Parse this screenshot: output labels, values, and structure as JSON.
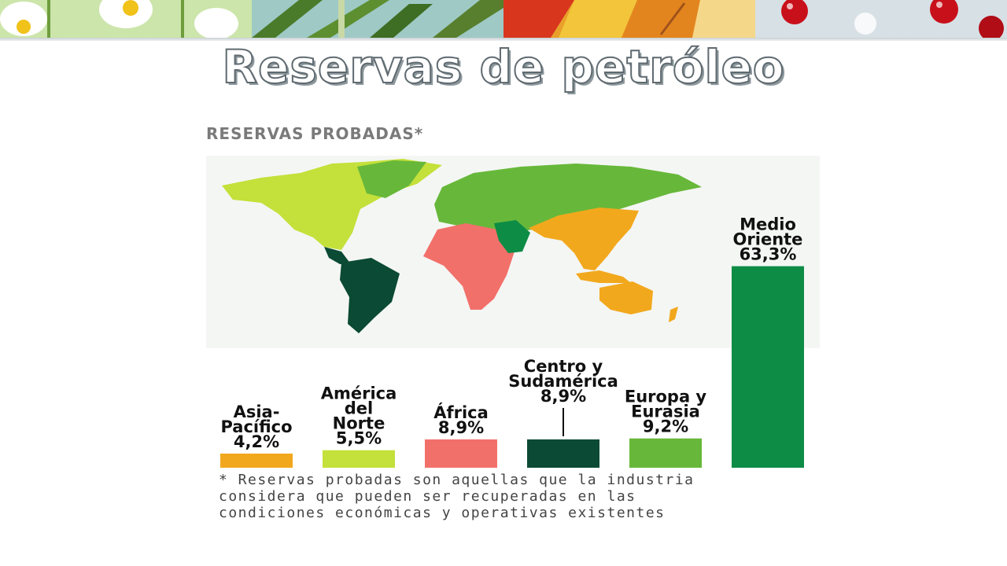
{
  "slide": {
    "title": "Reservas de petróleo"
  },
  "banner": {
    "seasons": [
      "spring-flowers-image",
      "summer-palm-image",
      "autumn-leaves-image",
      "winter-berries-image"
    ]
  },
  "figure": {
    "heading": "RESERVAS PROBADAS*",
    "region_colors": {
      "asia_pacifico": "#f2a81d",
      "america_norte": "#c4e03a",
      "africa": "#f2706a",
      "centro_sudamerica": "#0b4a34",
      "europa_eurasia": "#67b83a",
      "medio_oriente": "#0d8c45"
    },
    "footnote_lines": [
      "* Reservas probadas son aquellas que la industria",
      "considera que pueden ser recuperadas en las",
      "condiciones económicas y operativas existentes"
    ]
  },
  "chart_data": {
    "type": "bar",
    "title": "RESERVAS PROBADAS*",
    "xlabel": "",
    "ylabel": "",
    "unit": "%",
    "categories": [
      "Asia-Pacífico",
      "América del Norte",
      "África",
      "Centro y Sudamérica",
      "Europa y Eurasia",
      "Medio Oriente"
    ],
    "values": [
      4.2,
      5.5,
      8.9,
      8.9,
      9.2,
      63.3
    ],
    "value_labels": [
      "4,2%",
      "5,5%",
      "8,9%",
      "8,9%",
      "9,2%",
      "63,3%"
    ],
    "label_lines": [
      [
        "Asia-",
        "Pacífico",
        "4,2%"
      ],
      [
        "América",
        "del",
        "Norte",
        "5,5%"
      ],
      [
        "África",
        "8,9%"
      ],
      [
        "Centro y",
        "Sudamérica",
        "8,9%"
      ],
      [
        "Europa y",
        "Eurasia",
        "9,2%"
      ],
      [
        "Medio",
        "Oriente",
        "63,3%"
      ]
    ],
    "colors": [
      "#f2a81d",
      "#c4e03a",
      "#f2706a",
      "#0b4a34",
      "#67b83a",
      "#0d8c45"
    ],
    "grid": false,
    "legend": "none"
  }
}
